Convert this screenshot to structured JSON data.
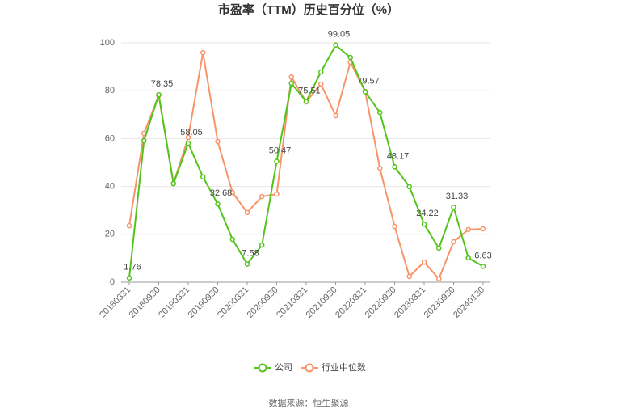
{
  "chart_data": {
    "type": "line",
    "title": "市盈率（TTM）历史百分位（%）",
    "categories": [
      "20180331",
      null,
      "20180930",
      null,
      "20190331",
      null,
      "20190930",
      null,
      "20200331",
      null,
      "20200930",
      null,
      "20210331",
      null,
      "20210930",
      null,
      "20220331",
      null,
      "20220930",
      null,
      "20230331",
      null,
      "20230930",
      null,
      "20240130"
    ],
    "series": [
      {
        "name": "公司",
        "color": "#52c41a",
        "values": [
          1.76,
          59.1,
          78.35,
          41.2,
          58.05,
          44.0,
          32.68,
          17.9,
          7.58,
          15.5,
          50.47,
          83.1,
          75.51,
          87.8,
          99.05,
          93.9,
          79.57,
          70.9,
          48.17,
          39.9,
          24.22,
          14.2,
          31.33,
          10.1,
          6.63
        ],
        "value_labels": [
          "1.76",
          null,
          "78.35",
          null,
          "58.05",
          null,
          "32.68",
          null,
          "7.58",
          null,
          "50.47",
          null,
          "75.51",
          null,
          "99.05",
          null,
          "79.57",
          null,
          "48.17",
          null,
          "24.22",
          null,
          "31.33",
          null,
          "6.63"
        ]
      },
      {
        "name": "行业中位数",
        "color": "#f7946a",
        "values": [
          23.6,
          62.2,
          78.0,
          41.2,
          60.5,
          95.9,
          58.8,
          37.5,
          29.1,
          35.8,
          36.8,
          85.8,
          75.3,
          82.8,
          69.6,
          91.9,
          79.7,
          47.6,
          23.3,
          2.4,
          8.4,
          1.4,
          16.9,
          22.0,
          22.3
        ]
      }
    ],
    "ylim": [
      0,
      100
    ],
    "yticks": [
      0,
      20,
      40,
      60,
      80,
      100
    ],
    "grid": true,
    "source": "数据来源：恒生聚源"
  }
}
